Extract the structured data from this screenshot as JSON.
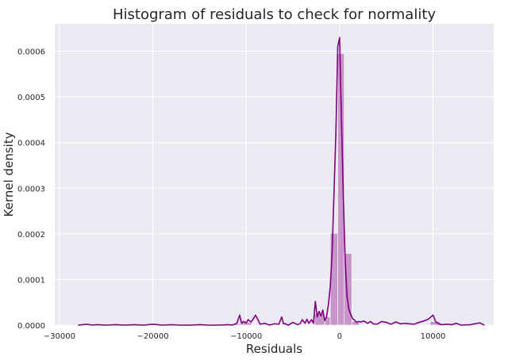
{
  "chart_data": {
    "type": "histogram",
    "title": "Histogram of residuals to check for normality",
    "xlabel": "Residuals",
    "ylabel": "Kernel density",
    "xlim": [
      -30500,
      16500
    ],
    "ylim": [
      0,
      0.00066
    ],
    "xticks": [
      -30000,
      -20000,
      -10000,
      0,
      10000
    ],
    "xtick_labels": [
      "−30000",
      "−20000",
      "−10000",
      "0",
      "10000"
    ],
    "yticks": [
      0,
      0.0001,
      0.0002,
      0.0003,
      0.0004,
      0.0005,
      0.0006
    ],
    "ytick_labels": [
      "0.0000",
      "0.0001",
      "0.0002",
      "0.0003",
      "0.0004",
      "0.0005",
      "0.0006"
    ],
    "grid": true,
    "colors": {
      "background": "#eaeaf2",
      "grid": "#ffffff",
      "bar": "#bf7fbf",
      "line": "#800080"
    },
    "bars": [
      {
        "x0": -11600,
        "x1": -10500,
        "value": 3e-06
      },
      {
        "x0": -10500,
        "x1": -9400,
        "value": 6e-06
      },
      {
        "x0": -2700,
        "x1": -1600,
        "value": 2.5e-05
      },
      {
        "x0": -1600,
        "x1": -1000,
        "value": 1.8e-05
      },
      {
        "x0": -1000,
        "x1": -200,
        "value": 0.000201
      },
      {
        "x0": -200,
        "x1": 500,
        "value": 0.000595
      },
      {
        "x0": 500,
        "x1": 1300,
        "value": 0.000157
      },
      {
        "x0": 1300,
        "x1": 2100,
        "value": 8e-06
      },
      {
        "x0": 9700,
        "x1": 10800,
        "value": 8e-06
      }
    ],
    "kde": {
      "x": [
        -28000,
        -27000,
        -26500,
        -26000,
        -25000,
        -24000,
        -23000,
        -22000,
        -21000,
        -20000,
        -19000,
        -18000,
        -17000,
        -16000,
        -15000,
        -14000,
        -13000,
        -12000,
        -11500,
        -11000,
        -10700,
        -10500,
        -10300,
        -10000,
        -9800,
        -9500,
        -9300,
        -9000,
        -8500,
        -8000,
        -7500,
        -7000,
        -6500,
        -6200,
        -6000,
        -5800,
        -5500,
        -5000,
        -4500,
        -4200,
        -4000,
        -3700,
        -3500,
        -3300,
        -3000,
        -2800,
        -2600,
        -2400,
        -2200,
        -2000,
        -1800,
        -1600,
        -1400,
        -1200,
        -1000,
        -800,
        -600,
        -400,
        -200,
        0,
        200,
        400,
        600,
        800,
        1000,
        1200,
        1400,
        1600,
        1800,
        2000,
        2300,
        2600,
        3000,
        3300,
        3600,
        4000,
        4500,
        5000,
        5500,
        6000,
        6500,
        7000,
        7500,
        8000,
        8500,
        9000,
        9500,
        10000,
        10300,
        10700,
        11000,
        11500,
        12000,
        12500,
        13000,
        14000,
        15000,
        15500
      ],
      "y": [
        0.0,
        2e-06,
        0.0,
        1e-06,
        0.0,
        1e-06,
        0.0,
        1e-06,
        0.0,
        2e-06,
        0.0,
        1e-06,
        0.0,
        0.0,
        1e-06,
        0.0,
        0.0,
        1e-06,
        0.0,
        4e-06,
        2.2e-05,
        4e-06,
        8e-06,
        5e-06,
        1.2e-05,
        7e-06,
        1.2e-05,
        2.2e-05,
        2e-06,
        4e-06,
        0.0,
        3e-06,
        2e-06,
        1.8e-05,
        3e-06,
        3e-06,
        0.0,
        6e-06,
        1e-06,
        4e-06,
        1.2e-05,
        4e-06,
        1.3e-05,
        4e-06,
        1.2e-05,
        4e-06,
        5.2e-05,
        1.8e-05,
        3e-05,
        2e-05,
        3.3e-05,
        1e-05,
        1.8e-05,
        4.5e-05,
        8.5e-05,
        0.00016,
        0.00029,
        0.00042,
        0.00061,
        0.00063,
        0.00045,
        0.00028,
        0.00014,
        6.2e-05,
        3.4e-05,
        2.3e-05,
        1.4e-05,
        1.1e-05,
        6e-06,
        8e-06,
        7e-06,
        9e-06,
        4e-06,
        8e-06,
        3e-06,
        2e-06,
        8e-06,
        6e-06,
        2e-06,
        7e-06,
        3e-06,
        4e-06,
        3e-06,
        2e-06,
        6e-06,
        9e-06,
        1.3e-05,
        2.2e-05,
        7e-06,
        2e-06,
        1e-06,
        2e-06,
        1e-06,
        4e-06,
        0.0,
        1e-06,
        5e-06,
        0.0
      ]
    }
  }
}
